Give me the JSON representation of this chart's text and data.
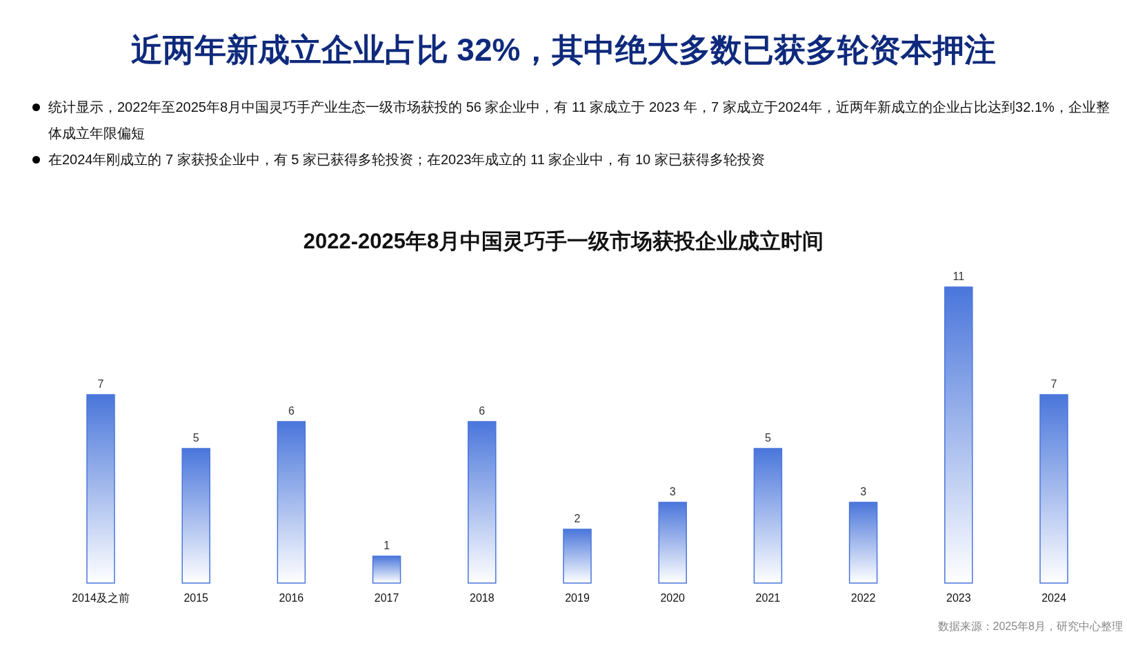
{
  "chart_data": {
    "type": "bar",
    "title": "近两年新成立企业占比 32%，其中绝大多数已获多轮资本押注",
    "subtitle": "2022-2025年8月中国灵巧手一级市场获投企业成立时间",
    "annotations": [
      "统计显示，2022年至2025年8月中国灵巧手产业生态一级市场获投的 56 家企业中，有 11 家成立于 2023 年，7 家成立于2024年，近两年新成立的企业占比达到32.1%，企业整体成立年限偏短",
      "在2024年刚成立的 7 家获投企业中，有 5 家已获得多轮投资；在2023年成立的 11 家企业中，有 10 家已获得多轮投资",
      "数据来源：2025年8月，研究中心整理"
    ],
    "categories": [
      "2014及之前",
      "2015",
      "2016",
      "2017",
      "2018",
      "2019",
      "2020",
      "2021",
      "2022",
      "2023",
      "2024"
    ],
    "values": [
      7,
      5,
      6,
      1,
      6,
      2,
      3,
      5,
      3,
      11,
      7
    ],
    "color": "#4a76db",
    "data_labels": true
  }
}
